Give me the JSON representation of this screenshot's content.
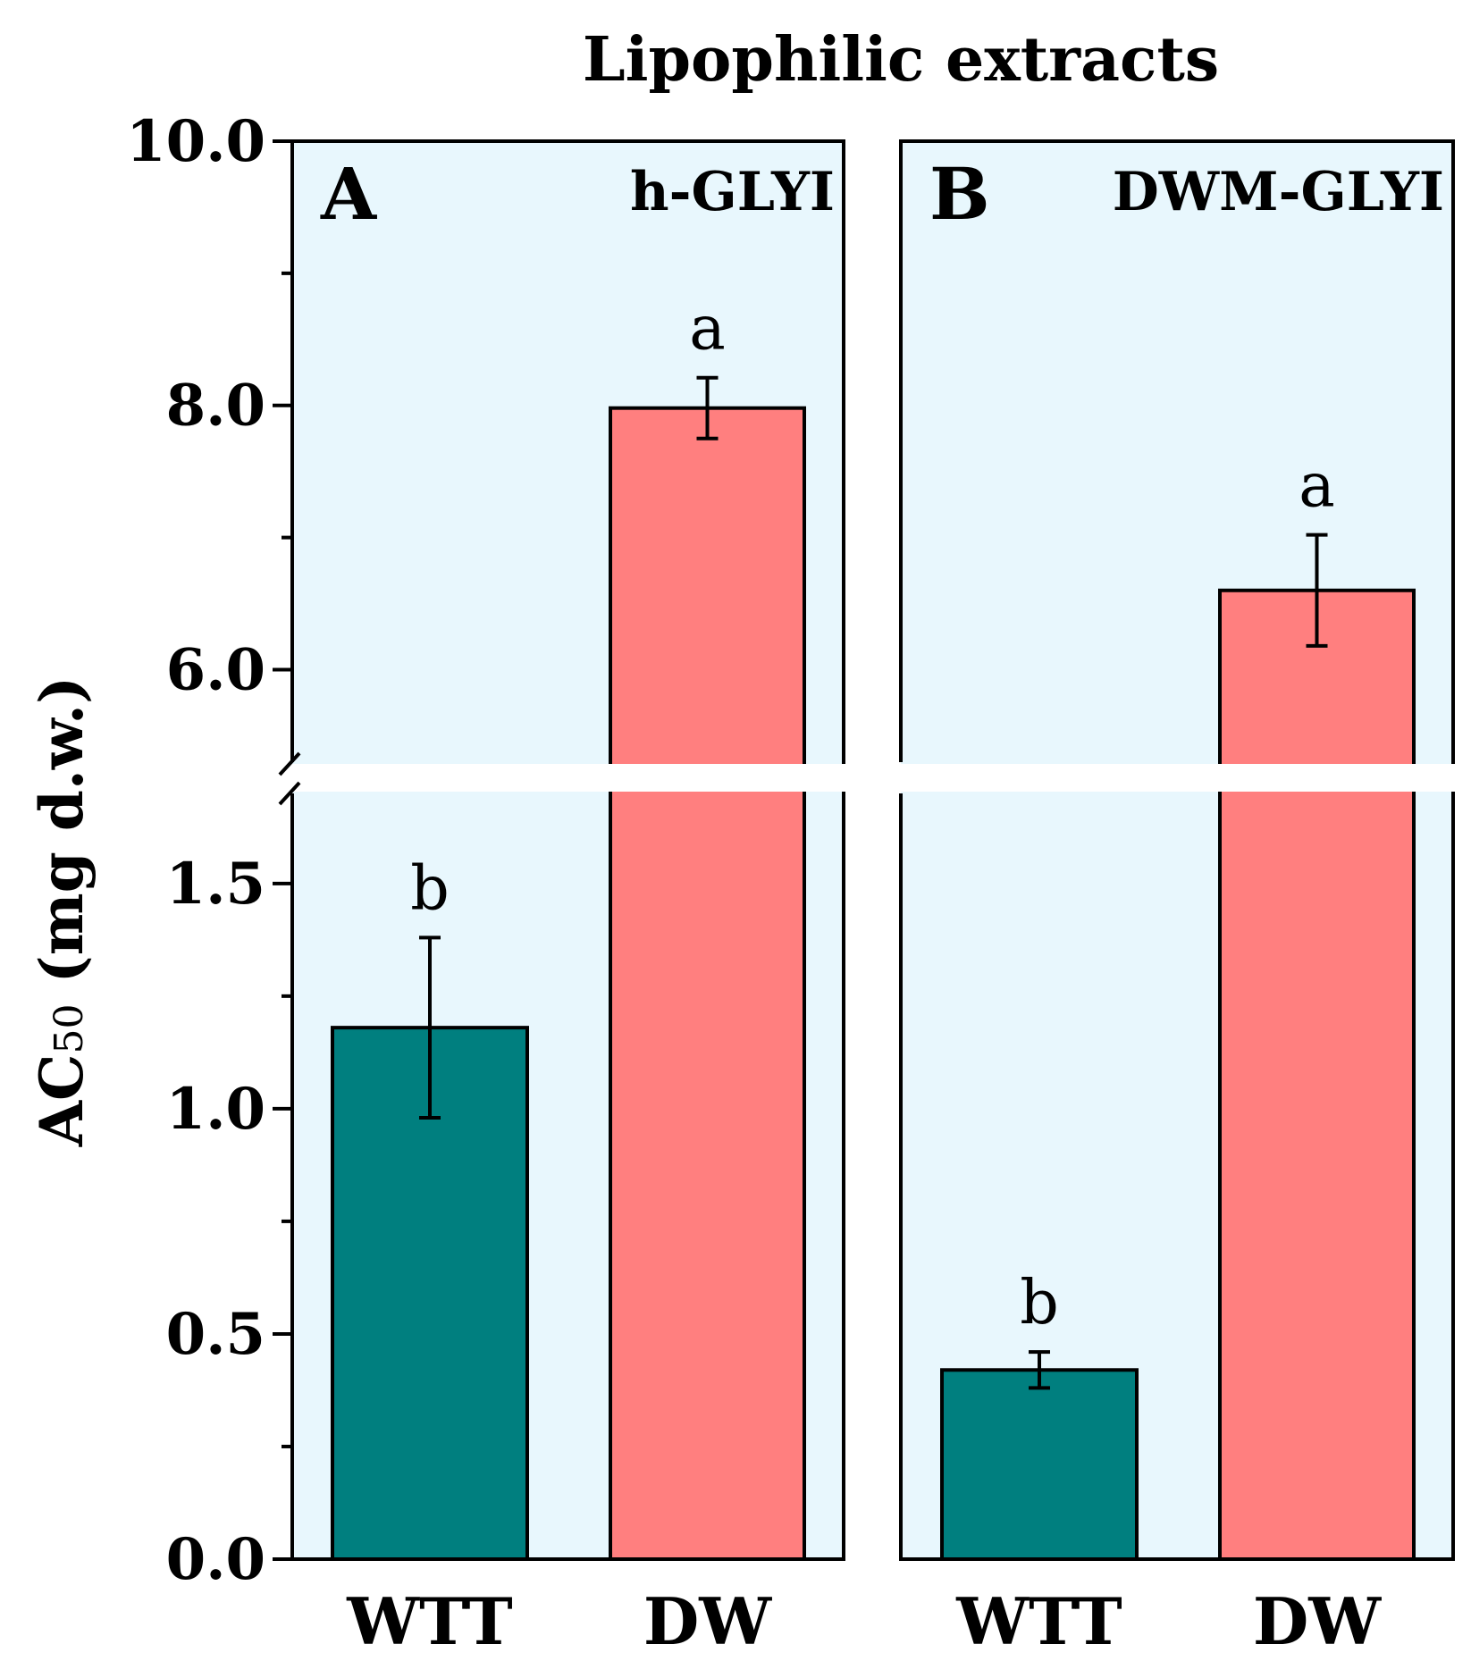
{
  "chart_data": {
    "type": "bar",
    "title": "Lipophilic extracts",
    "ylabel_main": "AC",
    "ylabel_sub": "50",
    "ylabel_unit": " (mg d.w.)",
    "y_axis": {
      "broken": true,
      "lower_range": [
        0.0,
        1.7
      ],
      "upper_range": [
        5.3,
        10.0
      ],
      "lower_ticks": [
        "0.0",
        "0.5",
        "1.0",
        "1.5"
      ],
      "lower_tick_values": [
        0.0,
        0.5,
        1.0,
        1.5
      ],
      "upper_ticks": [
        "6.0",
        "8.0",
        "10.0"
      ],
      "upper_tick_values": [
        6.0,
        8.0,
        10.0
      ],
      "lower_minor_ticks": [
        0.25,
        0.75,
        1.25
      ],
      "upper_minor_ticks": [
        7.0,
        9.0
      ]
    },
    "panels": [
      {
        "letter": "A",
        "name": "h-GLYI",
        "categories": [
          "WTT",
          "DW"
        ],
        "values": [
          1.18,
          7.98
        ],
        "errors": [
          0.2,
          0.23
        ],
        "sig_letters": [
          "b",
          "a"
        ]
      },
      {
        "letter": "B",
        "name": "DWM-GLYI",
        "categories": [
          "WTT",
          "DW"
        ],
        "values": [
          0.42,
          6.6
        ],
        "errors": [
          0.04,
          0.42
        ],
        "sig_letters": [
          "b",
          "a"
        ]
      }
    ],
    "colors": {
      "WTT": "#007f7f",
      "DW": "#ff7f7f",
      "panel_bg": "#e8f7fd",
      "axis": "#000000"
    },
    "grid": false,
    "legend": "none"
  }
}
